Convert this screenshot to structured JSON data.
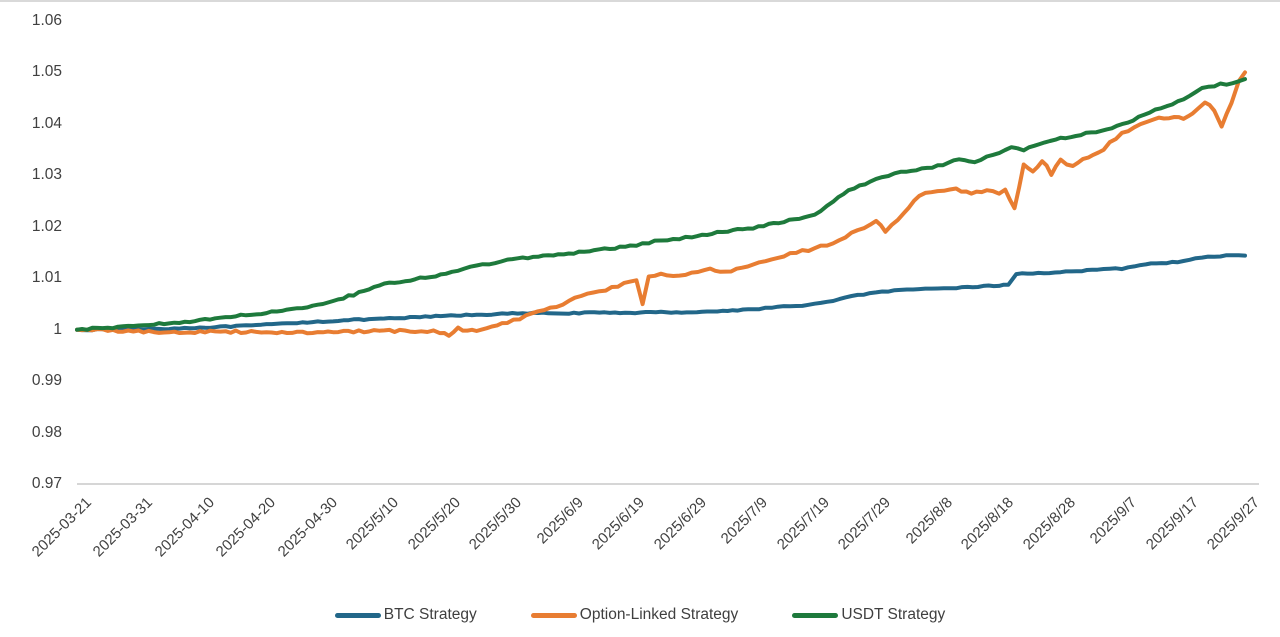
{
  "chart_data": {
    "type": "line",
    "title": "",
    "xlabel": "",
    "ylabel": "",
    "grid": false,
    "legend_position": "bottom",
    "ylim": [
      0.97,
      1.06
    ],
    "y_tick_labels": [
      "1.06",
      "1.05",
      "1.04",
      "1.03",
      "1.02",
      "1.01",
      "1",
      "0.99",
      "0.98",
      "0.97"
    ],
    "y_tick_values": [
      1.06,
      1.05,
      1.04,
      1.03,
      1.02,
      1.01,
      1.0,
      0.99,
      0.98,
      0.97
    ],
    "x_tick_labels": [
      "2025-03-21",
      "2025-03-31",
      "2025-04-10",
      "2025-04-20",
      "2025-04-30",
      "2025/5/10",
      "2025/5/20",
      "2025/5/30",
      "2025/6/9",
      "2025/6/19",
      "2025/6/29",
      "2025/7/9",
      "2025/7/19",
      "2025/7/29",
      "2025/8/8",
      "2025/8/18",
      "2025/8/28",
      "2025/9/7",
      "2025/9/17",
      "2025/9/27"
    ],
    "x_note": "points use fractional tick index: 0 = 2025-03-21, 19 = 2025/9/27, one tick = 10 days",
    "series": [
      {
        "name": "BTC Strategy",
        "color": "#226789",
        "points": [
          [
            0,
            1.0
          ],
          [
            0.5,
            1.0
          ],
          [
            1,
            1.0001
          ],
          [
            1.5,
            1.0002
          ],
          [
            2,
            1.0004
          ],
          [
            2.5,
            1.0006
          ],
          [
            3,
            1.0009
          ],
          [
            3.5,
            1.0013
          ],
          [
            4,
            1.0016
          ],
          [
            4.5,
            1.0019
          ],
          [
            5,
            1.0021
          ],
          [
            5.5,
            1.0024
          ],
          [
            6,
            1.0027
          ],
          [
            6.5,
            1.0029
          ],
          [
            7,
            1.0031
          ],
          [
            7.5,
            1.0032
          ],
          [
            8,
            1.0032
          ],
          [
            8.5,
            1.0033
          ],
          [
            9,
            1.0033
          ],
          [
            9.5,
            1.0034
          ],
          [
            10,
            1.0034
          ],
          [
            10.5,
            1.0036
          ],
          [
            11,
            1.004
          ],
          [
            11.4,
            1.0044
          ],
          [
            11.7,
            1.0046
          ],
          [
            12,
            1.005
          ],
          [
            12.3,
            1.0055
          ],
          [
            12.6,
            1.0066
          ],
          [
            13,
            1.0072
          ],
          [
            13.3,
            1.0076
          ],
          [
            13.7,
            1.0078
          ],
          [
            14,
            1.008
          ],
          [
            14.4,
            1.0082
          ],
          [
            15,
            1.0086
          ],
          [
            15.15,
            1.0088
          ],
          [
            15.28,
            1.0108
          ],
          [
            16,
            1.0112
          ],
          [
            16.6,
            1.0116
          ],
          [
            17,
            1.0119
          ],
          [
            17.3,
            1.0126
          ],
          [
            17.9,
            1.0132
          ],
          [
            18.3,
            1.014
          ],
          [
            18.7,
            1.0144
          ],
          [
            19,
            1.0144
          ]
        ]
      },
      {
        "name": "Option-Linked Strategy",
        "color": "#e87d32",
        "points": [
          [
            0,
            1.0
          ],
          [
            0.5,
            0.9999
          ],
          [
            1,
            0.9997
          ],
          [
            1.5,
            0.9995
          ],
          [
            2,
            0.9995
          ],
          [
            2.5,
            0.9996
          ],
          [
            3,
            0.9996
          ],
          [
            3.5,
            0.9995
          ],
          [
            4,
            0.9995
          ],
          [
            4.5,
            0.9996
          ],
          [
            5,
            0.9997
          ],
          [
            5.5,
            0.9997
          ],
          [
            5.9,
            0.9996
          ],
          [
            6.05,
            0.999
          ],
          [
            6.2,
            1.0002
          ],
          [
            6.35,
            0.9996
          ],
          [
            6.5,
            1.0
          ],
          [
            7,
            1.0015
          ],
          [
            7.4,
            1.003
          ],
          [
            7.7,
            1.0042
          ],
          [
            8,
            1.0055
          ],
          [
            8.3,
            1.007
          ],
          [
            8.6,
            1.0078
          ],
          [
            8.9,
            1.009
          ],
          [
            9.1,
            1.0096
          ],
          [
            9.2,
            1.0052
          ],
          [
            9.3,
            1.0102
          ],
          [
            9.5,
            1.0107
          ],
          [
            9.8,
            1.0104
          ],
          [
            10,
            1.0112
          ],
          [
            10.3,
            1.0116
          ],
          [
            10.55,
            1.0111
          ],
          [
            11,
            1.0128
          ],
          [
            11.3,
            1.0134
          ],
          [
            11.6,
            1.0146
          ],
          [
            12,
            1.0158
          ],
          [
            12.3,
            1.017
          ],
          [
            12.6,
            1.0186
          ],
          [
            13,
            1.0212
          ],
          [
            13.15,
            1.0192
          ],
          [
            13.45,
            1.0225
          ],
          [
            13.7,
            1.026
          ],
          [
            14,
            1.027
          ],
          [
            14.3,
            1.0272
          ],
          [
            14.55,
            1.0266
          ],
          [
            14.8,
            1.0272
          ],
          [
            15,
            1.0264
          ],
          [
            15.1,
            1.0272
          ],
          [
            15.25,
            1.0235
          ],
          [
            15.4,
            1.0322
          ],
          [
            15.55,
            1.0305
          ],
          [
            15.7,
            1.033
          ],
          [
            15.85,
            1.0303
          ],
          [
            16,
            1.033
          ],
          [
            16.2,
            1.0316
          ],
          [
            16.45,
            1.0336
          ],
          [
            16.7,
            1.0352
          ],
          [
            17,
            1.0382
          ],
          [
            17.3,
            1.0398
          ],
          [
            17.6,
            1.041
          ],
          [
            17.85,
            1.0415
          ],
          [
            18,
            1.0408
          ],
          [
            18.15,
            1.0422
          ],
          [
            18.35,
            1.0443
          ],
          [
            18.5,
            1.0425
          ],
          [
            18.62,
            1.0395
          ],
          [
            18.78,
            1.044
          ],
          [
            18.9,
            1.0482
          ],
          [
            19,
            1.05
          ]
        ]
      },
      {
        "name": "USDT Strategy",
        "color": "#1e7a3c",
        "points": [
          [
            0,
            1.0
          ],
          [
            0.5,
            1.0004
          ],
          [
            1,
            1.0008
          ],
          [
            1.5,
            1.0013
          ],
          [
            2,
            1.0018
          ],
          [
            2.5,
            1.0025
          ],
          [
            3,
            1.0032
          ],
          [
            3.5,
            1.004
          ],
          [
            4,
            1.005
          ],
          [
            4.5,
            1.0068
          ],
          [
            5,
            1.0088
          ],
          [
            5.5,
            1.0098
          ],
          [
            6,
            1.0108
          ],
          [
            6.3,
            1.0118
          ],
          [
            6.6,
            1.0126
          ],
          [
            7,
            1.0135
          ],
          [
            7.5,
            1.0142
          ],
          [
            8,
            1.0148
          ],
          [
            8.5,
            1.0155
          ],
          [
            9,
            1.0162
          ],
          [
            9.4,
            1.0172
          ],
          [
            9.7,
            1.0176
          ],
          [
            10,
            1.018
          ],
          [
            10.5,
            1.019
          ],
          [
            11,
            1.0198
          ],
          [
            11.5,
            1.021
          ],
          [
            12,
            1.0223
          ],
          [
            12.3,
            1.0248
          ],
          [
            12.55,
            1.0272
          ],
          [
            13,
            1.0292
          ],
          [
            13.4,
            1.0306
          ],
          [
            14,
            1.0318
          ],
          [
            14.35,
            1.0332
          ],
          [
            14.6,
            1.0326
          ],
          [
            15,
            1.0345
          ],
          [
            15.2,
            1.0356
          ],
          [
            15.4,
            1.035
          ],
          [
            16,
            1.0372
          ],
          [
            16.5,
            1.0383
          ],
          [
            17,
            1.0398
          ],
          [
            17.45,
            1.0422
          ],
          [
            18,
            1.0448
          ],
          [
            18.3,
            1.0468
          ],
          [
            18.6,
            1.0477
          ],
          [
            18.8,
            1.0478
          ],
          [
            19,
            1.0487
          ]
        ]
      }
    ],
    "legend": [
      "BTC Strategy",
      "Option-Linked Strategy",
      "USDT Strategy"
    ]
  }
}
